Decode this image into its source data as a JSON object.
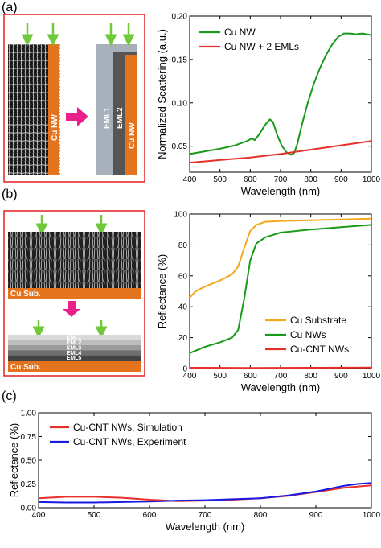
{
  "panels": [
    {
      "id": "a",
      "label": "(a)"
    },
    {
      "id": "b",
      "label": "(b)"
    },
    {
      "id": "c",
      "label": "(c)"
    }
  ],
  "schematic_a": {
    "cu_nw": "Cu NW",
    "eml1": "EML1",
    "eml2": "EML2",
    "cu_nw_right": "Cu NW"
  },
  "schematic_b": {
    "top_substrate": "Cu Sub.",
    "bottom_substrate": "Cu Sub.",
    "layers": [
      "EML1",
      "EML2",
      "EML3",
      "EML4",
      "EML5"
    ]
  },
  "colors": {
    "green": "#1a9a1a",
    "red": "#e8302a",
    "orange": "#f3a81a",
    "blue": "#1a1ae0",
    "frame": "#e02020",
    "arrow_green": "#6fc93a",
    "arrow_pink": "#e8208a",
    "copper": "#e4731e"
  },
  "chart_data": [
    {
      "type": "line",
      "xlabel": "Wavelength (nm)",
      "ylabel": "Normalized Scattering (a.u.)",
      "xlim": [
        400,
        1000
      ],
      "ylim": [
        0.02,
        0.2
      ],
      "xticks": [
        400,
        500,
        600,
        700,
        800,
        900,
        1000
      ],
      "yticks": [
        0.05,
        0.1,
        0.15,
        0.2
      ],
      "ytick_labels": [
        "0.05",
        "0.10",
        "0.15",
        "0.20"
      ],
      "legend_position": "top-right",
      "series": [
        {
          "name": "Cu NW",
          "color": "#1a9a1a",
          "x": [
            400,
            450,
            500,
            550,
            590,
            605,
            615,
            630,
            650,
            665,
            675,
            690,
            705,
            720,
            735,
            745,
            755,
            770,
            790,
            810,
            830,
            850,
            870,
            890,
            910,
            930,
            950,
            970,
            985,
            1000
          ],
          "y": [
            0.041,
            0.044,
            0.047,
            0.051,
            0.056,
            0.059,
            0.057,
            0.064,
            0.075,
            0.081,
            0.078,
            0.062,
            0.05,
            0.043,
            0.04,
            0.042,
            0.052,
            0.074,
            0.1,
            0.122,
            0.14,
            0.155,
            0.167,
            0.176,
            0.18,
            0.18,
            0.179,
            0.18,
            0.179,
            0.178
          ]
        },
        {
          "name": "Cu NW + 2 EMLs",
          "color": "#e8302a",
          "x": [
            400,
            500,
            600,
            700,
            800,
            900,
            1000
          ],
          "y": [
            0.031,
            0.034,
            0.037,
            0.041,
            0.046,
            0.051,
            0.056
          ]
        }
      ]
    },
    {
      "type": "line",
      "xlabel": "Wavelength (nm)",
      "ylabel": "Reflectance (%)",
      "xlim": [
        400,
        1000
      ],
      "ylim": [
        0,
        100
      ],
      "xticks": [
        400,
        500,
        600,
        700,
        800,
        900,
        1000
      ],
      "yticks": [
        0,
        20,
        40,
        60,
        80,
        100
      ],
      "legend_position": "bottom-right",
      "series": [
        {
          "name": "Cu Substrate",
          "color": "#f3a81a",
          "x": [
            400,
            420,
            450,
            500,
            540,
            560,
            580,
            600,
            620,
            650,
            700,
            800,
            900,
            1000
          ],
          "y": [
            46,
            50,
            53,
            57,
            61,
            66,
            78,
            89,
            93,
            95,
            95.5,
            96,
            96.5,
            97
          ]
        },
        {
          "name": "Cu NWs",
          "color": "#1a9a1a",
          "x": [
            400,
            450,
            500,
            540,
            560,
            580,
            600,
            620,
            650,
            700,
            800,
            900,
            1000
          ],
          "y": [
            10,
            14,
            17,
            20,
            25,
            45,
            70,
            81,
            85,
            88,
            90,
            91.5,
            93
          ]
        },
        {
          "name": "Cu-CNT NWs",
          "color": "#e8302a",
          "x": [
            400,
            600,
            800,
            1000
          ],
          "y": [
            0.5,
            0.4,
            0.5,
            0.6
          ]
        }
      ]
    },
    {
      "type": "line",
      "xlabel": "Wavelength (nm)",
      "ylabel": "Reflectance (%)",
      "xlim": [
        400,
        1000
      ],
      "ylim": [
        0,
        1.0
      ],
      "xticks": [
        400,
        500,
        600,
        700,
        800,
        900,
        1000
      ],
      "yticks": [
        0.0,
        0.25,
        0.5,
        0.75,
        1.0
      ],
      "ytick_labels": [
        "0.00",
        "0.25",
        "0.50",
        "0.75",
        "1.00"
      ],
      "legend_position": "top-left",
      "series": [
        {
          "name": "Cu-CNT NWs, Simulation",
          "color": "#e8302a",
          "x": [
            400,
            450,
            500,
            550,
            600,
            650,
            700,
            750,
            800,
            850,
            900,
            950,
            1000
          ],
          "y": [
            0.1,
            0.115,
            0.115,
            0.105,
            0.085,
            0.07,
            0.075,
            0.085,
            0.1,
            0.125,
            0.165,
            0.21,
            0.235
          ]
        },
        {
          "name": "Cu-CNT NWs, Experiment",
          "color": "#1a1ae0",
          "x": [
            400,
            450,
            500,
            550,
            600,
            650,
            700,
            750,
            800,
            850,
            900,
            925,
            950,
            975,
            1000
          ],
          "y": [
            0.06,
            0.055,
            0.055,
            0.06,
            0.065,
            0.075,
            0.08,
            0.09,
            0.1,
            0.13,
            0.17,
            0.2,
            0.23,
            0.25,
            0.26
          ]
        }
      ]
    }
  ]
}
